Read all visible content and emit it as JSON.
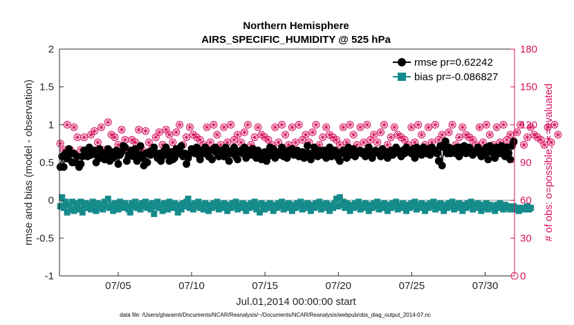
{
  "chart_data": {
    "type": "line",
    "title": "Northern Hemisphere",
    "subtitle": "AIRS_SPECIFIC_HUMIDITY @ 525 hPa",
    "xlabel": "Jul.01,2014 00:00:00 start",
    "ylabel_left": "rmse and bias (model - observation)",
    "ylabel_right": "# of obs: o=possible; ∗=evaluated",
    "footer": "data file: /Users/gharamti/Documents/NCAR/Reanalysis/~/Documents/NCAR/Reanalysis/webpub/obs_diag_output_2014-07.nc",
    "x_ticks": [
      "07/05",
      "07/10",
      "07/15",
      "07/20",
      "07/25",
      "07/30"
    ],
    "x_tick_days": [
      5,
      10,
      15,
      20,
      25,
      30
    ],
    "xlim_days": [
      1.0,
      32.0
    ],
    "ylim_left": [
      -1,
      2
    ],
    "yticks_left": [
      "2",
      "1.5",
      "1",
      "0.5",
      "0",
      "-0.5",
      "-1"
    ],
    "ylim_right": [
      0,
      180
    ],
    "yticks_right": [
      "180",
      "150",
      "120",
      "90",
      "60",
      "30",
      "0"
    ],
    "legend": [
      "rmse pr=0.62242",
      "bias pr=-0.086827"
    ],
    "legend_position": "top-right",
    "colors": {
      "rmse": "#000000",
      "bias": "#168b8b",
      "obs": "#d6125e",
      "zero": "#b3b3b3",
      "axis": "#262626"
    },
    "series": [
      {
        "name": "rmse",
        "marker": "circle-filled",
        "values": [
          0.44,
          0.58,
          0.44,
          0.62,
          0.55,
          0.68,
          0.62,
          0.5,
          0.62,
          0.5,
          0.58,
          0.44,
          0.48,
          0.58,
          0.66,
          0.64,
          0.58,
          0.7,
          0.6,
          0.62,
          0.66,
          0.5,
          0.58,
          0.68,
          0.56,
          0.62,
          0.54,
          0.6,
          0.68,
          0.52,
          0.64,
          0.56,
          0.58,
          0.66,
          0.48,
          0.6,
          0.64,
          0.72,
          0.7,
          0.52,
          0.58,
          0.62,
          0.66,
          0.58,
          0.68,
          0.52,
          0.6,
          0.72,
          0.56,
          0.46,
          0.62,
          0.5,
          0.64,
          0.6,
          0.66,
          0.7,
          0.62,
          0.56,
          0.62,
          0.52,
          0.58,
          0.66,
          0.7,
          0.6,
          0.52,
          0.64,
          0.54,
          0.56,
          0.68,
          0.62,
          0.66,
          0.72,
          0.58,
          0.62,
          0.48,
          0.56,
          0.62,
          0.68,
          0.66,
          0.62,
          0.7,
          0.6,
          0.54,
          0.66,
          0.62,
          0.7,
          0.64,
          0.58,
          0.66,
          0.54,
          0.68,
          0.7,
          0.62,
          0.58,
          0.66,
          0.62,
          0.58,
          0.7,
          0.64,
          0.52,
          0.62,
          0.66,
          0.7,
          0.58,
          0.54,
          0.64,
          0.66,
          0.62,
          0.7,
          0.56,
          0.62,
          0.66,
          0.6,
          0.68,
          0.62,
          0.56,
          0.66,
          0.62,
          0.54,
          0.6,
          0.64,
          0.52,
          0.58,
          0.7,
          0.62,
          0.68,
          0.56,
          0.64,
          0.62,
          0.6,
          0.7,
          0.58,
          0.62,
          0.56,
          0.66,
          0.62,
          0.68,
          0.6,
          0.62,
          0.66,
          0.58,
          0.62,
          0.64,
          0.56,
          0.62,
          0.72,
          0.62,
          0.54,
          0.62,
          0.7,
          0.64,
          0.58,
          0.66,
          0.6,
          0.62,
          0.66,
          0.56,
          0.62,
          0.7,
          0.58,
          0.62,
          0.66,
          0.64,
          0.56,
          0.52,
          0.62,
          0.66,
          0.62,
          0.56,
          0.7,
          0.6,
          0.62,
          0.68,
          0.58,
          0.62,
          0.64,
          0.66,
          0.62,
          0.62,
          0.58,
          0.66,
          0.7,
          0.62,
          0.56,
          0.62,
          0.66,
          0.64,
          0.62,
          0.58,
          0.68,
          0.62,
          0.64,
          0.56,
          0.62,
          0.66,
          0.6,
          0.62,
          0.7,
          0.66,
          0.62,
          0.58,
          0.66,
          0.62,
          0.7,
          0.64,
          0.66,
          0.62,
          0.68,
          0.56,
          0.7,
          0.62,
          0.66,
          0.6,
          0.7,
          0.64,
          0.62,
          0.68,
          0.6,
          0.7,
          0.64,
          0.66,
          0.62,
          0.52,
          0.72,
          0.46,
          0.7,
          0.78,
          0.62,
          0.7,
          0.62,
          0.66,
          0.68,
          0.62,
          0.7,
          0.58,
          0.7,
          0.64,
          0.72,
          0.62,
          0.66,
          0.7,
          0.62,
          0.6,
          0.64,
          0.66,
          0.7,
          0.62,
          0.58,
          0.66,
          0.62,
          0.7,
          0.54,
          0.72,
          0.64,
          0.62,
          0.56,
          0.7,
          0.66,
          0.62,
          0.72,
          0.64,
          0.58,
          0.7,
          0.62,
          0.54,
          0.72,
          0.78
        ]
      },
      {
        "name": "bias",
        "marker": "square-filled",
        "values": [
          -0.08,
          0.04,
          -0.1,
          -0.02,
          -0.16,
          -0.06,
          -0.12,
          -0.02,
          -0.14,
          -0.08,
          -0.04,
          -0.12,
          -0.02,
          -0.16,
          -0.08,
          -0.04,
          -0.1,
          -0.06,
          -0.12,
          -0.02,
          -0.08,
          -0.14,
          -0.04,
          -0.1,
          -0.06,
          -0.12,
          -0.02,
          -0.08,
          0.02,
          -0.1,
          -0.06,
          -0.14,
          -0.04,
          -0.08,
          -0.12,
          -0.02,
          -0.06,
          -0.1,
          -0.04,
          -0.08,
          -0.12,
          -0.16,
          -0.04,
          -0.08,
          -0.02,
          -0.1,
          -0.06,
          -0.12,
          -0.04,
          -0.08,
          -0.02,
          -0.1,
          -0.06,
          -0.12,
          -0.04,
          -0.18,
          -0.08,
          -0.02,
          -0.1,
          -0.06,
          -0.14,
          -0.04,
          -0.08,
          -0.12,
          -0.02,
          -0.06,
          -0.1,
          -0.04,
          -0.08,
          -0.16,
          -0.06,
          -0.12,
          -0.04,
          -0.08,
          -0.02,
          0.02,
          -0.1,
          -0.06,
          -0.12,
          -0.04,
          -0.08,
          -0.02,
          -0.1,
          -0.06,
          -0.12,
          -0.04,
          -0.08,
          -0.14,
          -0.06,
          -0.1,
          -0.04,
          -0.08,
          -0.02,
          -0.12,
          -0.06,
          -0.1,
          -0.04,
          -0.08,
          -0.14,
          -0.06,
          -0.1,
          -0.04,
          -0.08,
          -0.02,
          -0.12,
          -0.06,
          -0.1,
          -0.04,
          -0.08,
          -0.14,
          -0.06,
          -0.1,
          -0.04,
          -0.08,
          -0.02,
          -0.12,
          -0.06,
          -0.16,
          -0.04,
          -0.08,
          -0.12,
          -0.06,
          -0.1,
          -0.04,
          -0.08,
          -0.14,
          -0.06,
          -0.1,
          -0.04,
          -0.08,
          -0.02,
          -0.12,
          -0.06,
          -0.1,
          -0.04,
          -0.08,
          -0.14,
          -0.06,
          -0.1,
          -0.04,
          -0.08,
          -0.02,
          -0.12,
          -0.06,
          -0.1,
          -0.04,
          -0.08,
          -0.14,
          -0.06,
          -0.1,
          -0.04,
          -0.08,
          -0.02,
          -0.12,
          -0.06,
          -0.1,
          -0.04,
          -0.08,
          -0.14,
          -0.06,
          -0.1,
          -0.04,
          0.02,
          -0.08,
          0.04,
          -0.06,
          -0.02,
          -0.1,
          -0.04,
          -0.08,
          -0.14,
          -0.06,
          -0.1,
          -0.04,
          -0.08,
          -0.02,
          -0.12,
          -0.06,
          -0.1,
          -0.04,
          -0.08,
          -0.14,
          -0.06,
          -0.1,
          -0.04,
          -0.08,
          -0.02,
          -0.12,
          -0.06,
          -0.1,
          -0.04,
          -0.08,
          -0.14,
          -0.06,
          -0.1,
          -0.04,
          -0.08,
          -0.02,
          -0.12,
          -0.06,
          -0.1,
          -0.04,
          -0.08,
          -0.14,
          -0.06,
          -0.1,
          -0.04,
          -0.08,
          -0.02,
          -0.12,
          -0.06,
          -0.1,
          -0.04,
          -0.08,
          -0.14,
          -0.06,
          -0.1,
          -0.04,
          -0.08,
          -0.02,
          -0.12,
          -0.06,
          -0.1,
          -0.04,
          -0.08,
          -0.14,
          -0.06,
          -0.1,
          -0.04,
          -0.08,
          -0.02,
          -0.12,
          -0.06,
          -0.1,
          -0.04,
          -0.08,
          -0.14,
          -0.06,
          -0.1,
          -0.04,
          -0.08,
          -0.02,
          -0.12,
          -0.06,
          -0.1,
          -0.04,
          -0.08,
          -0.14,
          -0.06,
          -0.1,
          -0.04,
          -0.12,
          -0.06,
          -0.1,
          -0.08,
          -0.14,
          -0.06,
          -0.1,
          -0.04,
          -0.08,
          -0.12,
          -0.06,
          -0.1,
          -0.08,
          -0.12,
          -0.1,
          -0.08,
          -0.12,
          -0.1,
          -0.14,
          -0.12,
          -0.1,
          -0.12,
          -0.1,
          -0.08,
          -0.12,
          -0.1
        ]
      },
      {
        "name": "obs_possible",
        "marker": "circle-open",
        "axis": "right",
        "values": [
          105,
          110,
          100,
          115,
          120,
          108,
          100,
          95,
          118,
          108,
          110,
          95,
          100,
          122,
          110,
          105,
          100,
          118,
          112,
          108,
          115,
          120,
          106,
          112,
          118,
          110,
          100,
          115,
          122,
          108,
          112,
          106,
          110,
          118,
          104,
          112,
          116,
          110,
          108,
          114,
          100,
          112,
          108,
          118,
          106,
          112,
          116,
          110,
          100,
          108,
          115,
          120,
          106,
          112,
          102,
          118,
          110,
          108,
          114,
          120,
          104,
          110,
          116,
          108,
          112,
          118,
          106,
          110,
          114,
          108,
          120,
          112,
          104,
          116,
          110,
          108,
          118,
          106,
          112,
          114,
          110,
          120,
          108,
          116,
          104,
          112,
          118,
          110,
          106,
          114,
          120,
          108,
          112,
          116,
          104,
          110,
          118,
          112,
          106,
          114,
          120,
          110,
          108,
          116,
          112,
          118,
          106,
          110,
          114,
          108,
          120,
          112,
          104,
          116,
          110,
          108,
          118,
          106,
          112,
          114,
          110,
          120,
          108,
          116,
          104,
          112,
          118,
          110,
          106,
          114,
          120,
          108,
          112,
          116,
          104,
          110,
          118,
          112,
          106,
          114,
          120,
          110,
          108,
          116,
          112,
          118,
          106,
          110,
          114,
          108,
          120,
          112,
          104,
          116,
          110,
          108,
          118,
          106,
          112,
          114,
          110,
          120,
          108,
          116,
          104,
          112,
          118,
          110,
          106,
          114,
          120,
          108,
          112,
          116,
          104,
          110,
          118,
          112,
          106,
          114,
          120,
          110,
          108,
          116,
          112,
          118,
          106,
          110,
          114,
          108,
          120,
          112,
          104,
          116,
          110,
          108,
          118,
          106,
          112,
          114,
          110,
          120,
          108,
          116,
          104,
          112,
          118,
          110,
          106,
          114,
          120,
          108,
          112,
          116,
          104,
          110,
          118,
          112,
          106,
          114,
          120,
          110,
          108,
          116,
          112,
          118,
          106,
          110,
          114,
          108,
          120,
          112,
          104,
          116,
          110,
          108,
          118,
          106,
          112,
          114,
          110,
          120,
          108,
          116,
          104,
          112,
          118,
          110,
          106,
          114,
          120,
          108,
          112,
          116,
          104,
          110,
          118,
          112,
          106,
          114,
          120,
          110,
          108,
          116,
          112,
          118,
          106,
          110,
          114,
          108,
          120,
          112,
          104,
          116,
          110,
          108,
          118,
          106,
          112,
          114,
          110,
          120,
          108,
          116,
          104,
          112,
          118,
          110,
          106,
          114,
          120,
          108,
          112,
          116
        ]
      }
    ]
  }
}
